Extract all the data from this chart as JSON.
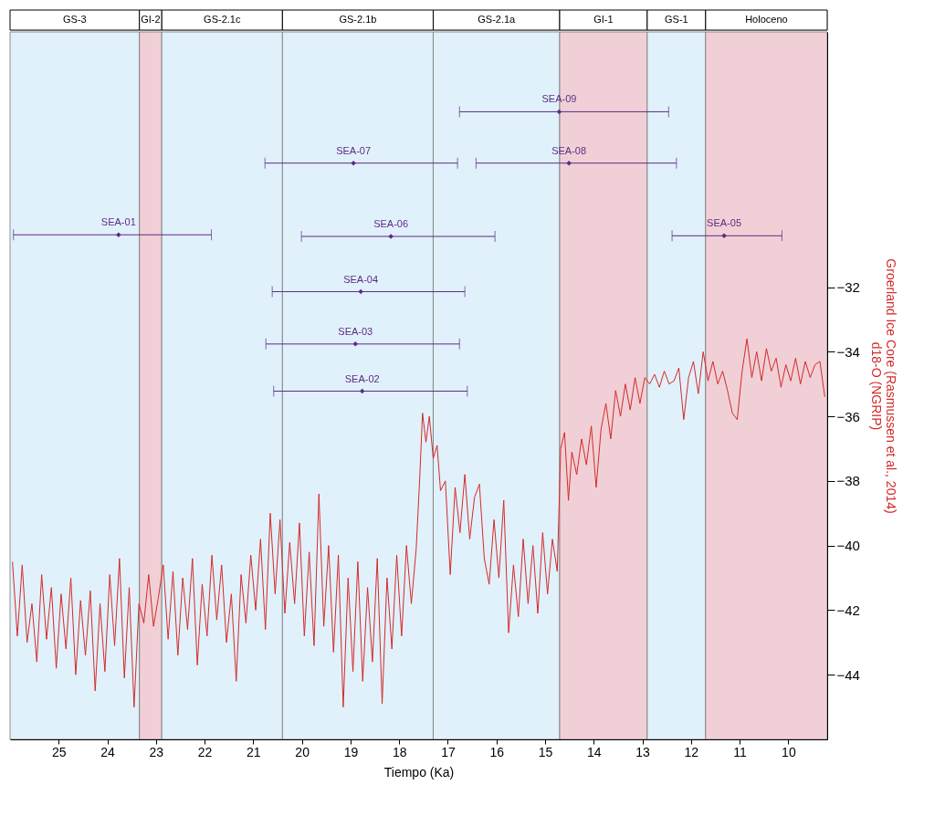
{
  "chart_data": {
    "type": "line",
    "xlabel": "Tiempo (Ka)",
    "ylabel": "Groerland Ice Core (Rasmussen et al., 2014)\nd18-O (NGRIP)",
    "xlim": [
      26,
      9.2
    ],
    "xticks": [
      25,
      24,
      23,
      22,
      21,
      20,
      19,
      18,
      17,
      16,
      15,
      14,
      13,
      12,
      11,
      10
    ],
    "ylim": [
      -46,
      -24.1
    ],
    "yticks": [
      -32,
      -34,
      -36,
      -38,
      -40,
      -42,
      -44
    ],
    "grid": false,
    "bands": [
      {
        "axis": "x",
        "from": 26,
        "to": 23.34,
        "label": "GS-3",
        "color": "#e1f1fb"
      },
      {
        "axis": "x",
        "from": 23.34,
        "to": 22.88,
        "label": "GI-2",
        "color": "#f0d0d6"
      },
      {
        "axis": "x",
        "from": 22.88,
        "to": 20.4,
        "label": "GS-2.1c",
        "color": "#e1f1fb"
      },
      {
        "axis": "x",
        "from": 20.4,
        "to": 17.3,
        "label": "GS-2.1b",
        "color": "#e1f1fb"
      },
      {
        "axis": "x",
        "from": 17.3,
        "to": 14.7,
        "label": "GS-2.1a",
        "color": "#e1f1fb"
      },
      {
        "axis": "x",
        "from": 14.7,
        "to": 12.9,
        "label": "GI-1",
        "color": "#f0d0d6"
      },
      {
        "axis": "x",
        "from": 12.9,
        "to": 11.7,
        "label": "GS-1",
        "color": "#e1f1fb"
      },
      {
        "axis": "x",
        "from": 11.7,
        "to": 9.2,
        "label": "Holoceno",
        "color": "#f0d0d6"
      }
    ],
    "series": [
      {
        "type": "line",
        "color": "#d42a2a",
        "line_style": "solid",
        "x": [
          25.95,
          25.85,
          25.75,
          25.65,
          25.55,
          25.45,
          25.35,
          25.25,
          25.15,
          25.05,
          24.95,
          24.85,
          24.75,
          24.65,
          24.55,
          24.45,
          24.35,
          24.25,
          24.15,
          24.05,
          23.95,
          23.85,
          23.75,
          23.65,
          23.55,
          23.45,
          23.35,
          23.25,
          23.15,
          23.05,
          22.95,
          22.85,
          22.75,
          22.65,
          22.55,
          22.45,
          22.35,
          22.25,
          22.15,
          22.05,
          21.95,
          21.85,
          21.75,
          21.65,
          21.55,
          21.45,
          21.35,
          21.25,
          21.15,
          21.05,
          20.95,
          20.85,
          20.75,
          20.65,
          20.55,
          20.45,
          20.35,
          20.25,
          20.15,
          20.05,
          19.95,
          19.85,
          19.75,
          19.65,
          19.55,
          19.45,
          19.35,
          19.25,
          19.15,
          19.05,
          18.95,
          18.85,
          18.75,
          18.65,
          18.55,
          18.45,
          18.35,
          18.25,
          18.15,
          18.05,
          17.95,
          17.85,
          17.75,
          17.65,
          17.58,
          17.52,
          17.45,
          17.38,
          17.3,
          17.22,
          17.15,
          17.05,
          16.95,
          16.85,
          16.75,
          16.65,
          16.55,
          16.45,
          16.35,
          16.25,
          16.15,
          16.05,
          15.95,
          15.85,
          15.75,
          15.65,
          15.55,
          15.45,
          15.35,
          15.25,
          15.15,
          15.05,
          14.95,
          14.85,
          14.75,
          14.68,
          14.6,
          14.52,
          14.45,
          14.35,
          14.25,
          14.15,
          14.05,
          13.95,
          13.85,
          13.75,
          13.65,
          13.55,
          13.45,
          13.35,
          13.25,
          13.15,
          13.05,
          12.95,
          12.85,
          12.75,
          12.65,
          12.55,
          12.45,
          12.35,
          12.25,
          12.15,
          12.05,
          11.95,
          11.85,
          11.75,
          11.65,
          11.55,
          11.45,
          11.35,
          11.25,
          11.15,
          11.05,
          10.95,
          10.85,
          10.75,
          10.65,
          10.55,
          10.45,
          10.35,
          10.25,
          10.15,
          10.05,
          9.95,
          9.85,
          9.75,
          9.65,
          9.55,
          9.45,
          9.35,
          9.25
        ],
        "values": [
          -40.5,
          -42.8,
          -40.6,
          -43.0,
          -41.8,
          -43.6,
          -40.9,
          -42.9,
          -41.3,
          -43.8,
          -41.5,
          -43.2,
          -41.0,
          -44.0,
          -41.7,
          -43.4,
          -41.4,
          -44.5,
          -41.8,
          -43.9,
          -40.9,
          -43.1,
          -40.4,
          -44.1,
          -41.3,
          -45.0,
          -41.8,
          -42.4,
          -40.9,
          -42.5,
          -41.6,
          -40.6,
          -42.9,
          -40.8,
          -43.4,
          -41.0,
          -42.6,
          -40.4,
          -43.7,
          -41.2,
          -42.8,
          -40.3,
          -42.3,
          -40.6,
          -43.0,
          -41.5,
          -44.2,
          -40.9,
          -42.4,
          -40.3,
          -42.0,
          -39.8,
          -42.6,
          -39.0,
          -41.5,
          -39.2,
          -42.1,
          -39.9,
          -41.8,
          -39.3,
          -42.8,
          -40.2,
          -43.1,
          -38.4,
          -42.5,
          -40.0,
          -43.3,
          -40.3,
          -45.0,
          -41.0,
          -43.9,
          -40.5,
          -44.2,
          -41.3,
          -43.6,
          -40.4,
          -44.9,
          -41.0,
          -43.2,
          -40.3,
          -42.8,
          -40.0,
          -41.8,
          -40.1,
          -38.0,
          -35.9,
          -36.8,
          -36.0,
          -37.3,
          -36.9,
          -38.3,
          -38.0,
          -40.9,
          -38.2,
          -39.6,
          -37.8,
          -39.8,
          -38.5,
          -38.1,
          -40.4,
          -41.2,
          -39.2,
          -41.0,
          -38.6,
          -42.7,
          -40.6,
          -42.2,
          -39.8,
          -41.8,
          -40.0,
          -42.1,
          -39.6,
          -41.5,
          -39.8,
          -40.8,
          -37.0,
          -36.5,
          -38.6,
          -37.1,
          -37.8,
          -36.7,
          -37.5,
          -36.3,
          -38.2,
          -36.4,
          -35.6,
          -36.7,
          -35.2,
          -36.0,
          -35.0,
          -35.8,
          -34.8,
          -35.6,
          -34.8,
          -35.0,
          -34.7,
          -35.1,
          -34.6,
          -35.0,
          -34.9,
          -34.5,
          -36.1,
          -34.8,
          -34.3,
          -35.3,
          -34.0,
          -34.9,
          -34.3,
          -35.0,
          -34.6,
          -35.2,
          -35.9,
          -36.1,
          -34.6,
          -33.6,
          -34.8,
          -34.0,
          -34.9,
          -33.9,
          -34.6,
          -34.2,
          -35.1,
          -34.4,
          -34.9,
          -34.2,
          -35.0,
          -34.3,
          -34.8,
          -34.4,
          -34.3,
          -35.4
        ]
      },
      {
        "type": "scatter",
        "color": "#5b2c83",
        "marker": "diamond",
        "x": [
          23.77,
          18.76,
          18.9,
          18.79,
          11.32,
          18.17,
          18.94,
          14.51,
          14.71
        ],
        "values": [
          -30.38,
          -35.22,
          -33.76,
          -32.14,
          -30.41,
          -30.43,
          -28.16,
          -28.16,
          -26.57
        ],
        "xerrors": [
          [
            21.86,
            25.93
          ],
          [
            16.6,
            20.58
          ],
          [
            16.76,
            20.74
          ],
          [
            16.65,
            20.61
          ],
          [
            10.13,
            12.39
          ],
          [
            16.03,
            20.01
          ],
          [
            16.8,
            20.76
          ],
          [
            12.3,
            16.42
          ],
          [
            12.46,
            16.76
          ]
        ]
      }
    ],
    "annotations": [
      {
        "text": "SEA-01",
        "x": 23.77,
        "y": -30.38
      },
      {
        "text": "SEA-02",
        "x": 18.76,
        "y": -35.22
      },
      {
        "text": "SEA-03",
        "x": 18.9,
        "y": -33.76
      },
      {
        "text": "SEA-04",
        "x": 18.79,
        "y": -32.14
      },
      {
        "text": "SEA-05",
        "x": 11.32,
        "y": -30.41
      },
      {
        "text": "SEA-06",
        "x": 18.17,
        "y": -30.43
      },
      {
        "text": "SEA-07",
        "x": 18.94,
        "y": -28.16
      },
      {
        "text": "SEA-08",
        "x": 14.51,
        "y": -28.16
      },
      {
        "text": "SEA-09",
        "x": 14.71,
        "y": -26.57
      }
    ]
  }
}
